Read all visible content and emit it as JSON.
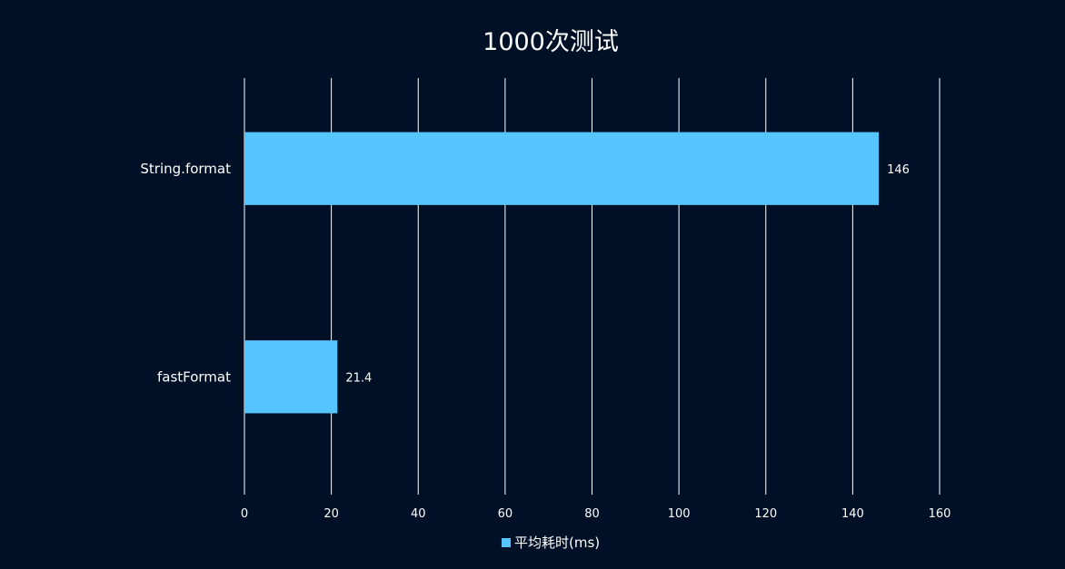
{
  "chart_data": {
    "type": "bar",
    "orientation": "horizontal",
    "title": "1000次测试",
    "categories": [
      "String.format",
      "fastFormat"
    ],
    "series": [
      {
        "name": "平均耗时(ms)",
        "values": [
          146,
          21.4
        ],
        "data_labels": [
          "146",
          "21.4"
        ],
        "color": "#55C4FF"
      }
    ],
    "x_ticks": [
      "0",
      "20",
      "40",
      "60",
      "80",
      "100",
      "120",
      "140",
      "160"
    ],
    "xlim": [
      0,
      160
    ],
    "xlabel": "",
    "ylabel": "",
    "grid": true,
    "legend_position": "bottom-center"
  },
  "colors": {
    "background": "#001027",
    "gridline": "#ffffff",
    "bar": "#55C4FF",
    "text": "#ffffff"
  }
}
